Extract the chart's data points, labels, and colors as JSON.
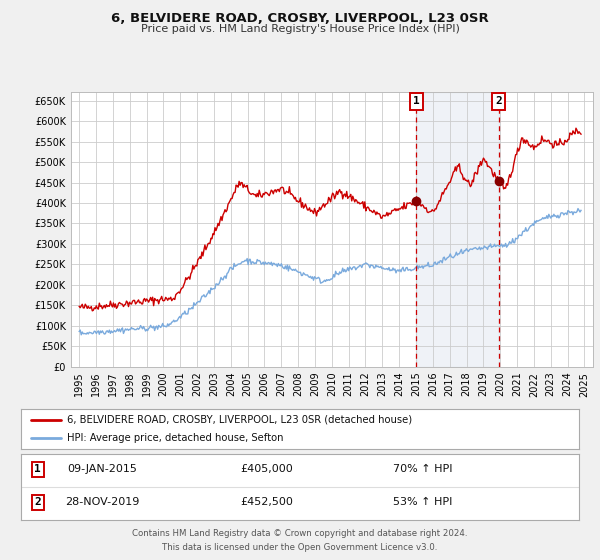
{
  "title": "6, BELVIDERE ROAD, CROSBY, LIVERPOOL, L23 0SR",
  "subtitle": "Price paid vs. HM Land Registry's House Price Index (HPI)",
  "ylabel_ticks": [
    "£0",
    "£50K",
    "£100K",
    "£150K",
    "£200K",
    "£250K",
    "£300K",
    "£350K",
    "£400K",
    "£450K",
    "£500K",
    "£550K",
    "£600K",
    "£650K"
  ],
  "ytick_values": [
    0,
    50000,
    100000,
    150000,
    200000,
    250000,
    300000,
    350000,
    400000,
    450000,
    500000,
    550000,
    600000,
    650000
  ],
  "xlim": [
    1994.5,
    2025.5
  ],
  "ylim": [
    0,
    670000
  ],
  "line1_color": "#cc0000",
  "line2_color": "#7aaadd",
  "marker1_color": "#880000",
  "annotation1_date": "09-JAN-2015",
  "annotation1_price": "£405,000",
  "annotation1_hpi": "70% ↑ HPI",
  "annotation2_date": "28-NOV-2019",
  "annotation2_price": "£452,500",
  "annotation2_hpi": "53% ↑ HPI",
  "vline1_x": 2015.03,
  "vline2_x": 2019.91,
  "point1_x": 2015.03,
  "point1_y": 405000,
  "point2_x": 2019.91,
  "point2_y": 452500,
  "legend1_label": "6, BELVIDERE ROAD, CROSBY, LIVERPOOL, L23 0SR (detached house)",
  "legend2_label": "HPI: Average price, detached house, Sefton",
  "footer1": "Contains HM Land Registry data © Crown copyright and database right 2024.",
  "footer2": "This data is licensed under the Open Government Licence v3.0.",
  "bg_color": "#f0f0f0",
  "plot_bg_color": "#ffffff",
  "grid_color": "#cccccc",
  "highlight_bg": "#dde8f5"
}
